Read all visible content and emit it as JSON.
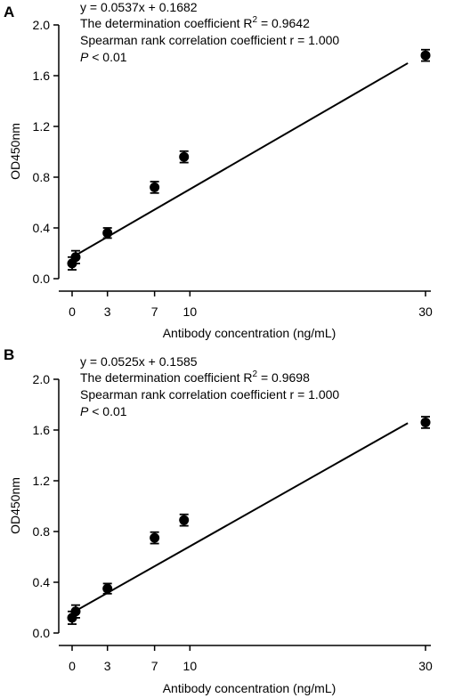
{
  "chart_data": [
    {
      "type": "scatter",
      "panel": "A",
      "xlabel": "Antibody concentration (ng/mL)",
      "ylabel": "OD450nm",
      "xlim": [
        0,
        30
      ],
      "ylim": [
        0,
        2.0
      ],
      "xticks": [
        0,
        3,
        7,
        10,
        30
      ],
      "yticks": [
        0.0,
        0.4,
        0.8,
        1.2,
        1.6,
        2.0
      ],
      "ytick_labels": [
        "0.0",
        "0.4",
        "0.8",
        "1.2",
        "1.6",
        "2.0"
      ],
      "points": [
        {
          "x": 0,
          "y": 0.12,
          "err": 0.05
        },
        {
          "x": 0.3,
          "y": 0.17,
          "err": 0.05
        },
        {
          "x": 3,
          "y": 0.36,
          "err": 0.04
        },
        {
          "x": 7,
          "y": 0.72,
          "err": 0.045
        },
        {
          "x": 9.5,
          "y": 0.96,
          "err": 0.045
        },
        {
          "x": 30,
          "y": 1.76,
          "err": 0.045
        }
      ],
      "fit": {
        "slope": 0.0537,
        "intercept": 0.1682,
        "x_range": [
          0,
          28.5
        ]
      },
      "annotations": [
        "y = 0.0537x + 0.1682",
        "The determination coefficient R",
        "2",
        " = 0.9642",
        "Spearman rank correlation coefficient r = 1.000",
        "P",
        " < 0.01"
      ],
      "grid": false
    },
    {
      "type": "scatter",
      "panel": "B",
      "xlabel": "Antibody concentration (ng/mL)",
      "ylabel": "OD450nm",
      "xlim": [
        0,
        30
      ],
      "ylim": [
        0,
        2.0
      ],
      "xticks": [
        0,
        3,
        7,
        10,
        30
      ],
      "yticks": [
        0.0,
        0.4,
        0.8,
        1.2,
        1.6,
        2.0
      ],
      "ytick_labels": [
        "0.0",
        "0.4",
        "0.8",
        "1.2",
        "1.6",
        "2.0"
      ],
      "points": [
        {
          "x": 0,
          "y": 0.12,
          "err": 0.05
        },
        {
          "x": 0.3,
          "y": 0.17,
          "err": 0.05
        },
        {
          "x": 3,
          "y": 0.35,
          "err": 0.04
        },
        {
          "x": 7,
          "y": 0.75,
          "err": 0.045
        },
        {
          "x": 9.5,
          "y": 0.89,
          "err": 0.045
        },
        {
          "x": 30,
          "y": 1.66,
          "err": 0.045
        }
      ],
      "fit": {
        "slope": 0.0525,
        "intercept": 0.1585,
        "x_range": [
          0,
          28.5
        ]
      },
      "annotations": [
        "y = 0.0525x + 0.1585",
        "The determination coefficient R",
        "2",
        " = 0.9698",
        "Spearman rank correlation coefficient r = 1.000",
        "P",
        " < 0.01"
      ],
      "grid": false
    }
  ]
}
